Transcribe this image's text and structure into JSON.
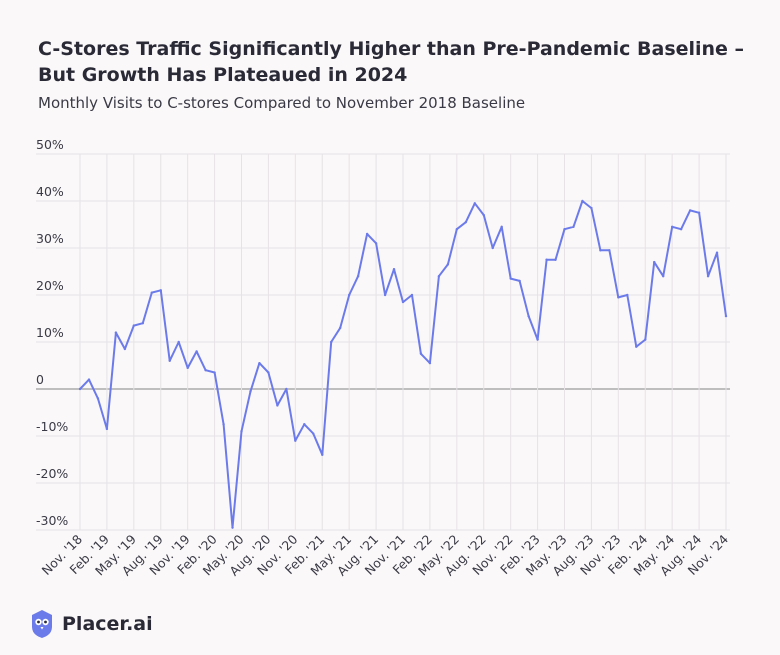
{
  "title": "C-Stores Traffic Significantly Higher than Pre-Pandemic Baseline – But Growth Has Plateaued in 2024",
  "subtitle": "Monthly Visits to C-stores Compared to November 2018 Baseline",
  "brand": {
    "name": "Placer.ai",
    "icon": "placer-owl-icon"
  },
  "colors": {
    "line": "#6c7bea",
    "zero_line": "#9a9a9a",
    "grid": "#e6e2e6",
    "text": "#3a3a46"
  },
  "chart_data": {
    "type": "line",
    "title": "C-Stores Traffic Significantly Higher than Pre-Pandemic Baseline – But Growth Has Plateaued in 2024",
    "subtitle": "Monthly Visits to C-stores Compared to November 2018 Baseline",
    "xlabel": "",
    "ylabel": "",
    "ylim": [
      -30,
      50
    ],
    "yticks": [
      {
        "value": 50,
        "label": "50%"
      },
      {
        "value": 40,
        "label": "40%"
      },
      {
        "value": 30,
        "label": "30%"
      },
      {
        "value": 20,
        "label": "20%"
      },
      {
        "value": 10,
        "label": "10%"
      },
      {
        "value": 0,
        "label": "0"
      },
      {
        "value": -10,
        "label": "-10%"
      },
      {
        "value": -20,
        "label": "-20%"
      },
      {
        "value": -30,
        "label": "-30%"
      }
    ],
    "grid": true,
    "legend": "none",
    "x_tick_labels": [
      "Nov. '18",
      "Feb. '19",
      "May. '19",
      "Aug. '19",
      "Nov. '19",
      "Feb. '20",
      "May. '20",
      "Aug. '20",
      "Nov. '20",
      "Feb. '21",
      "May. '21",
      "Aug. '21",
      "Nov. '21",
      "Feb. '22",
      "May. '22",
      "Aug. '22",
      "Nov. '22",
      "Feb. '23",
      "May. '23",
      "Aug. '23",
      "Nov. '23",
      "Feb. '24",
      "May. '24",
      "Aug. '24",
      "Nov. '24"
    ],
    "x": [
      "Nov. '18",
      "Dec. '18",
      "Jan. '19",
      "Feb. '19",
      "Mar. '19",
      "Apr. '19",
      "May. '19",
      "Jun. '19",
      "Jul. '19",
      "Aug. '19",
      "Sep. '19",
      "Oct. '19",
      "Nov. '19",
      "Dec. '19",
      "Jan. '20",
      "Feb. '20",
      "Mar. '20",
      "Apr. '20",
      "May. '20",
      "Jun. '20",
      "Jul. '20",
      "Aug. '20",
      "Sep. '20",
      "Oct. '20",
      "Nov. '20",
      "Dec. '20",
      "Jan. '21",
      "Feb. '21",
      "Mar. '21",
      "Apr. '21",
      "May. '21",
      "Jun. '21",
      "Jul. '21",
      "Aug. '21",
      "Sep. '21",
      "Oct. '21",
      "Nov. '21",
      "Dec. '21",
      "Jan. '22",
      "Feb. '22",
      "Mar. '22",
      "Apr. '22",
      "May. '22",
      "Jun. '22",
      "Jul. '22",
      "Aug. '22",
      "Sep. '22",
      "Oct. '22",
      "Nov. '22",
      "Dec. '22",
      "Jan. '23",
      "Feb. '23",
      "Mar. '23",
      "Apr. '23",
      "May. '23",
      "Jun. '23",
      "Jul. '23",
      "Aug. '23",
      "Sep. '23",
      "Oct. '23",
      "Nov. '23",
      "Dec. '23",
      "Jan. '24",
      "Feb. '24",
      "Mar. '24",
      "Apr. '24",
      "May. '24",
      "Jun. '24",
      "Jul. '24",
      "Aug. '24",
      "Sep. '24",
      "Oct. '24",
      "Nov. '24"
    ],
    "series": [
      {
        "values": [
          0,
          2,
          -2,
          -8.5,
          12,
          8.5,
          13.5,
          14,
          20.5,
          21,
          6,
          10,
          4.5,
          8,
          4,
          3.5,
          -7.5,
          -29.5,
          -9,
          -0.5,
          5.5,
          3.5,
          -3.5,
          0,
          -11,
          -7.5,
          -9.5,
          -14,
          10,
          13,
          20,
          24,
          33,
          31,
          20,
          25.5,
          18.5,
          20,
          7.5,
          5.5,
          24,
          26.5,
          34,
          35.5,
          39.5,
          37,
          30,
          34.5,
          23.5,
          23,
          15.5,
          10.5,
          27.5,
          27.5,
          34,
          34.5,
          40,
          38.5,
          29.5,
          29.5,
          19.5,
          20,
          9,
          10.5,
          27,
          24,
          34.5,
          34,
          38,
          37.5,
          24,
          29,
          15.5
        ]
      }
    ]
  }
}
